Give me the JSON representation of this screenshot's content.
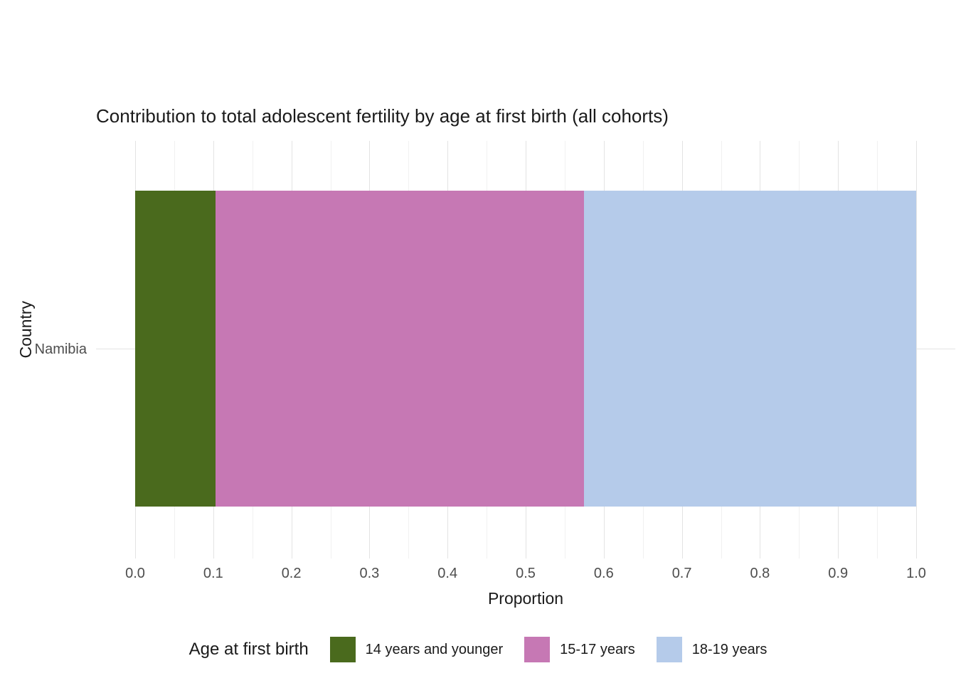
{
  "chart_data": {
    "type": "bar",
    "orientation": "horizontal",
    "stacked": true,
    "title": "Contribution to total adolescent fertility by age at first birth (all cohorts)",
    "xlabel": "Proportion",
    "ylabel": "Country",
    "categories": [
      "Namibia"
    ],
    "series": [
      {
        "name": "14 years and younger",
        "color": "#4a6a1d",
        "values": [
          0.103
        ]
      },
      {
        "name": "15-17 years",
        "color": "#c678b4",
        "values": [
          0.472
        ]
      },
      {
        "name": "18-19 years",
        "color": "#b5cbea",
        "values": [
          0.425
        ]
      }
    ],
    "xlim": [
      0,
      1
    ],
    "x_tick_values": [
      0.0,
      0.1,
      0.2,
      0.3,
      0.4,
      0.5,
      0.6,
      0.7,
      0.8,
      0.9,
      1.0
    ],
    "x_tick_labels": [
      "0.0",
      "0.1",
      "0.2",
      "0.3",
      "0.4",
      "0.5",
      "0.6",
      "0.7",
      "0.8",
      "0.9",
      "1.0"
    ],
    "grid": "on",
    "legend_title": "Age at first birth",
    "legend_position": "bottom"
  }
}
